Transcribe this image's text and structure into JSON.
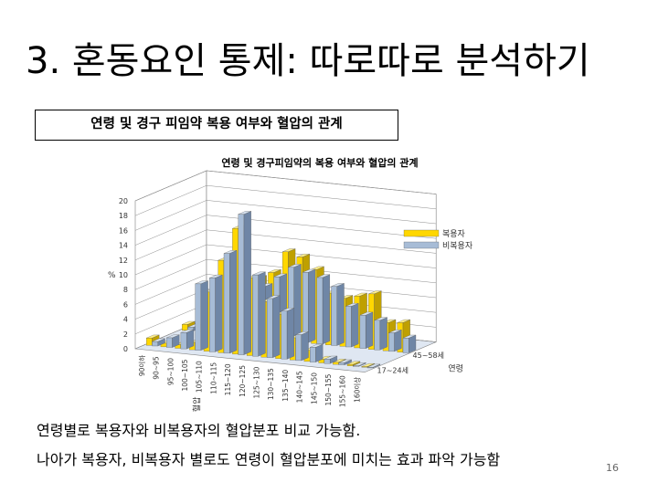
{
  "slide": {
    "title": "3. 혼동요인 통제: 따로따로 분석하기",
    "caption": "연령 및 경구 피임약 복용 여부와 혈압의 관계",
    "body_lines": [
      "연령별로 복용자와 비복용자의 혈압분포 비교 가능함.",
      "나아가 복용자, 비복용자 별로도 연령이 혈압분포에 미치는 효과 파악 가능함"
    ],
    "page_number": "16"
  },
  "colors": {
    "user_front": "#ffd700",
    "user_side": "#bfa000",
    "user_top": "#fff08a",
    "nonuser_front": "#a7bcd6",
    "nonuser_side": "#6f86a6",
    "nonuser_top": "#d6e2f0",
    "grid": "#8c8c8c",
    "frame": "#7f7f7f",
    "floor": "#dfe7f2"
  },
  "chart_data": {
    "type": "bar3d",
    "title": "연령 및 경구피임약의 복용 여부와 혈압의 관계",
    "ylabel": "%",
    "xlabel": "혈압",
    "depth_label": "연령",
    "ylim": [
      0,
      20
    ],
    "yticks": [
      0,
      2,
      4,
      6,
      8,
      10,
      12,
      14,
      16,
      18,
      20
    ],
    "categories": [
      "90이하",
      "90~95",
      "95~100",
      "100~105",
      "105~110",
      "110~115",
      "115~120",
      "120~125",
      "125~130",
      "130~135",
      "135~140",
      "140~145",
      "145~150",
      "150~155",
      "155~160",
      "160이상"
    ],
    "age_groups": [
      "17~24세",
      "45~58세"
    ],
    "series": [
      {
        "name": "복용자",
        "values": {
          "17~24세": [
            1.0,
            0.5,
            0.5,
            1.0,
            8.0,
            12.5,
            17.0,
            10.5,
            7.5,
            6.0,
            3.0,
            1.5,
            0.5,
            0.3,
            0.2,
            0.1
          ],
          "45~58세": [
            0.8,
            1.0,
            1.4,
            4.5,
            6.0,
            8.0,
            9.0,
            12.0,
            11.5,
            10.0,
            7.0,
            6.5,
            7.0,
            7.5,
            3.8,
            4.0
          ]
        }
      },
      {
        "name": "비복용자",
        "values": {
          "17~24세": [
            0.6,
            1.3,
            2.2,
            9.0,
            10.0,
            13.5,
            19.0,
            11.0,
            8.0,
            6.5,
            3.5,
            2.0,
            0.6,
            0.3,
            0.1,
            0.1
          ],
          "45~58세": [
            0.5,
            0.8,
            1.6,
            3.5,
            5.0,
            7.0,
            8.5,
            10.0,
            9.5,
            9.0,
            8.0,
            5.5,
            4.5,
            4.0,
            2.5,
            2.0
          ]
        }
      }
    ]
  }
}
